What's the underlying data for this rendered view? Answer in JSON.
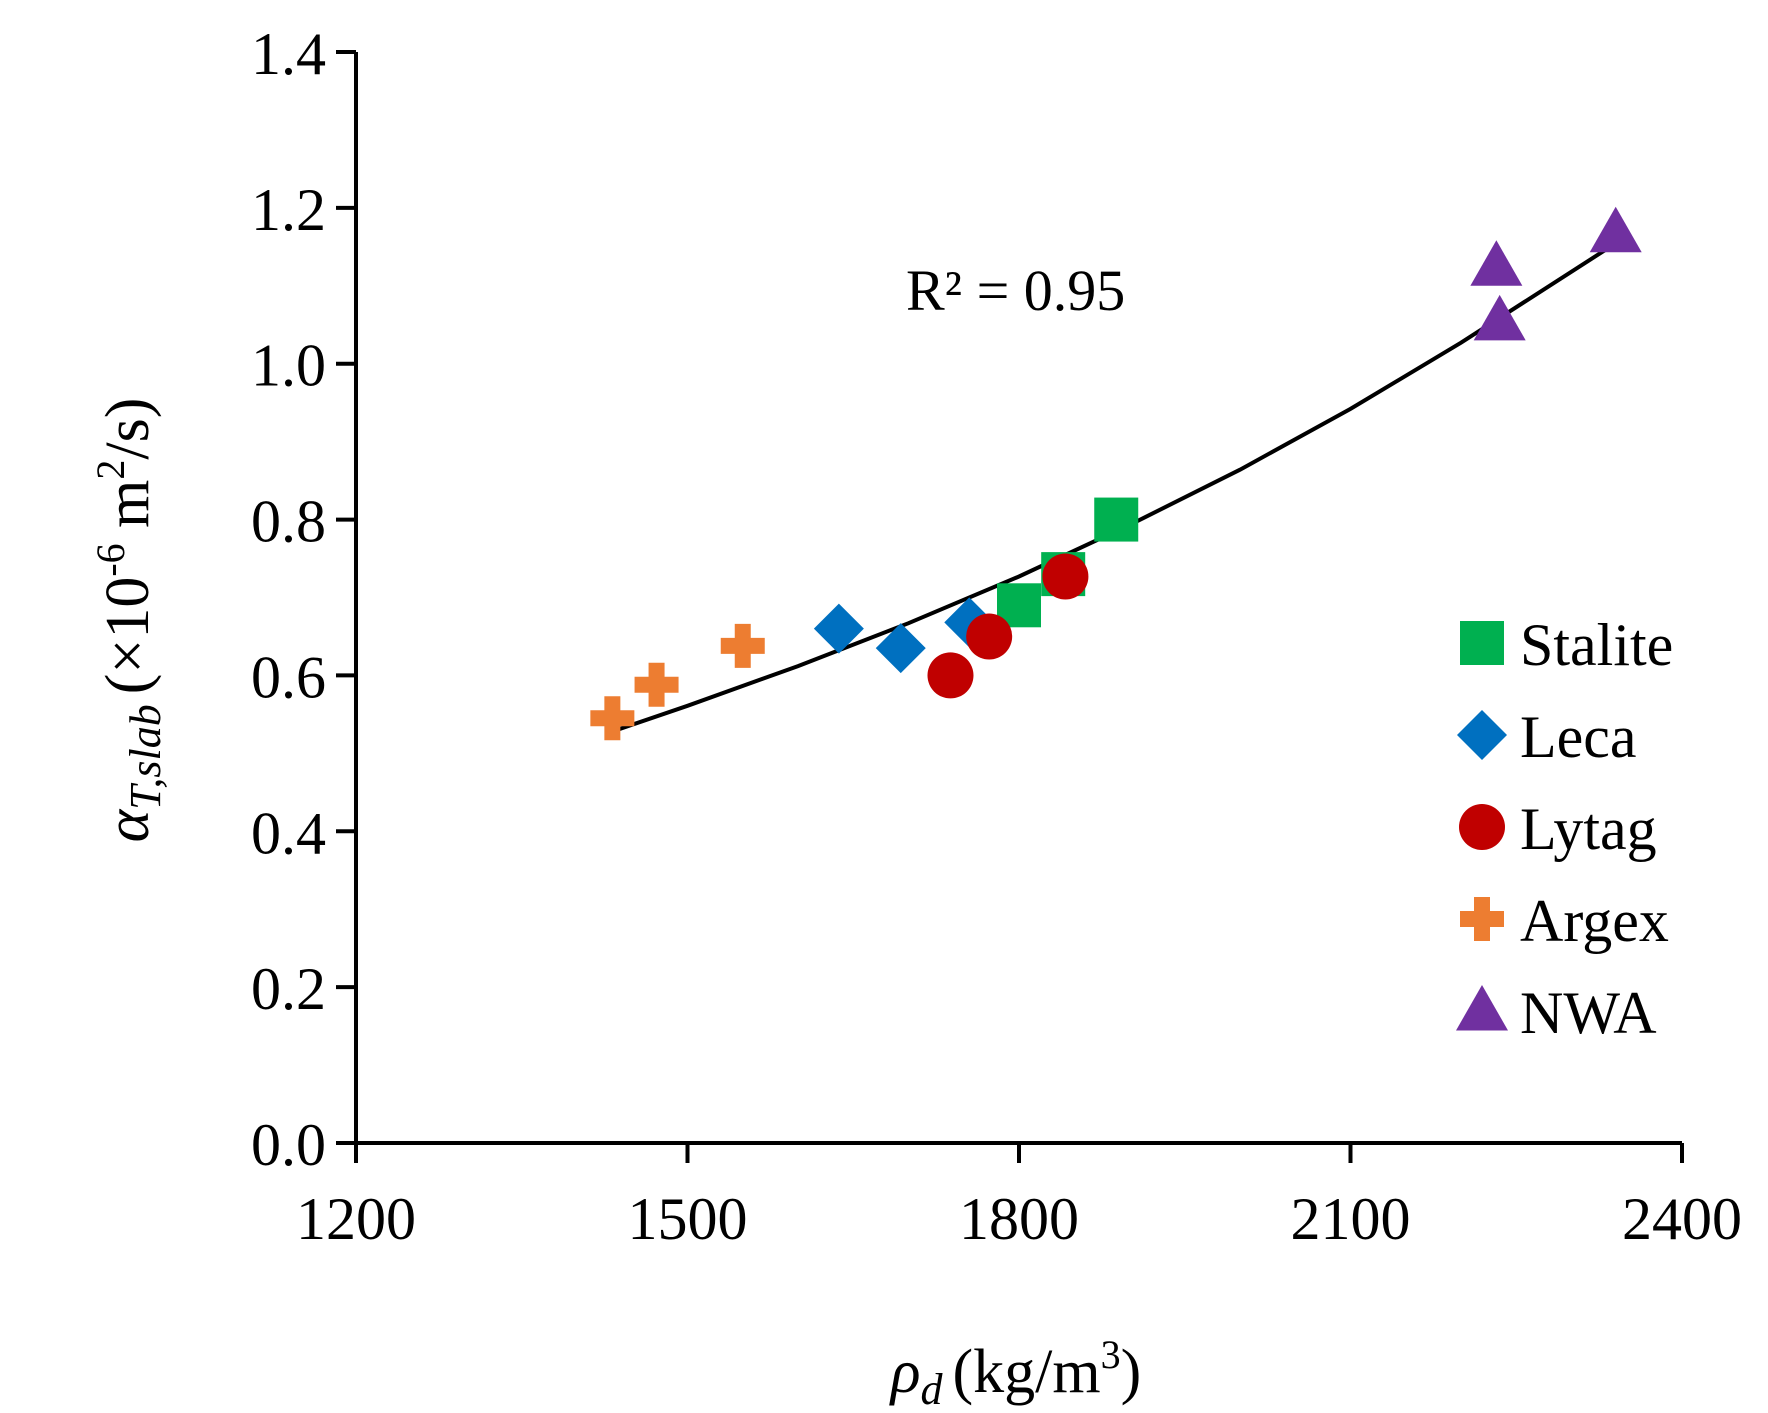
{
  "chart_data": {
    "type": "scatter",
    "xlabel": {
      "main": "ρ",
      "sub": "d",
      "units_pre": "(kg/m",
      "units_sup": "3",
      "units_post": ")"
    },
    "ylabel": {
      "main": "α",
      "sub": "T,slab",
      "units_pre": "(×10",
      "units_sup1": "-6",
      "units_mid": " m",
      "units_sup2": "2",
      "units_post": "/s)"
    },
    "xlim": [
      1200,
      2400
    ],
    "ylim": [
      0.0,
      1.4
    ],
    "x_ticks": [
      1200,
      1500,
      1800,
      2100,
      2400
    ],
    "x_tick_labels": [
      "1200",
      "1500",
      "1800",
      "2100",
      "2400"
    ],
    "y_ticks": [
      0.0,
      0.2,
      0.4,
      0.6,
      0.8,
      1.0,
      1.2,
      1.4
    ],
    "y_tick_labels": [
      "0.0",
      "0.2",
      "0.4",
      "0.6",
      "0.8",
      "1.0",
      "1.2",
      "1.4"
    ],
    "grid": false,
    "legend_position": "right",
    "annotation": "R² = 0.95",
    "series": [
      {
        "name": "Stalite",
        "marker": "square",
        "color": "#00b050",
        "points": [
          [
            1800,
            0.69
          ],
          [
            1840,
            0.73
          ],
          [
            1888,
            0.8
          ]
        ]
      },
      {
        "name": "Leca",
        "marker": "diamond",
        "color": "#0070c0",
        "points": [
          [
            1637,
            0.66
          ],
          [
            1693,
            0.635
          ],
          [
            1755,
            0.668
          ]
        ]
      },
      {
        "name": "Lytag",
        "marker": "circle",
        "color": "#c00000",
        "points": [
          [
            1738,
            0.6
          ],
          [
            1773,
            0.65
          ],
          [
            1842,
            0.727
          ]
        ]
      },
      {
        "name": "Argex",
        "marker": "plus",
        "color": "#ed7d31",
        "points": [
          [
            1432,
            0.545
          ],
          [
            1472,
            0.588
          ],
          [
            1550,
            0.638
          ]
        ]
      },
      {
        "name": "NWA",
        "marker": "triangle",
        "color": "#7030a0",
        "points": [
          [
            2232,
            1.125
          ],
          [
            2235,
            1.055
          ],
          [
            2340,
            1.168
          ]
        ]
      }
    ],
    "trendline": {
      "type": "exponential",
      "color": "#000000",
      "points": [
        [
          1432,
          0.528
        ],
        [
          1500,
          0.561
        ],
        [
          1600,
          0.612
        ],
        [
          1700,
          0.667
        ],
        [
          1800,
          0.727
        ],
        [
          1900,
          0.793
        ],
        [
          2000,
          0.864
        ],
        [
          2100,
          0.942
        ],
        [
          2200,
          1.027
        ],
        [
          2335,
          1.15
        ]
      ]
    }
  }
}
